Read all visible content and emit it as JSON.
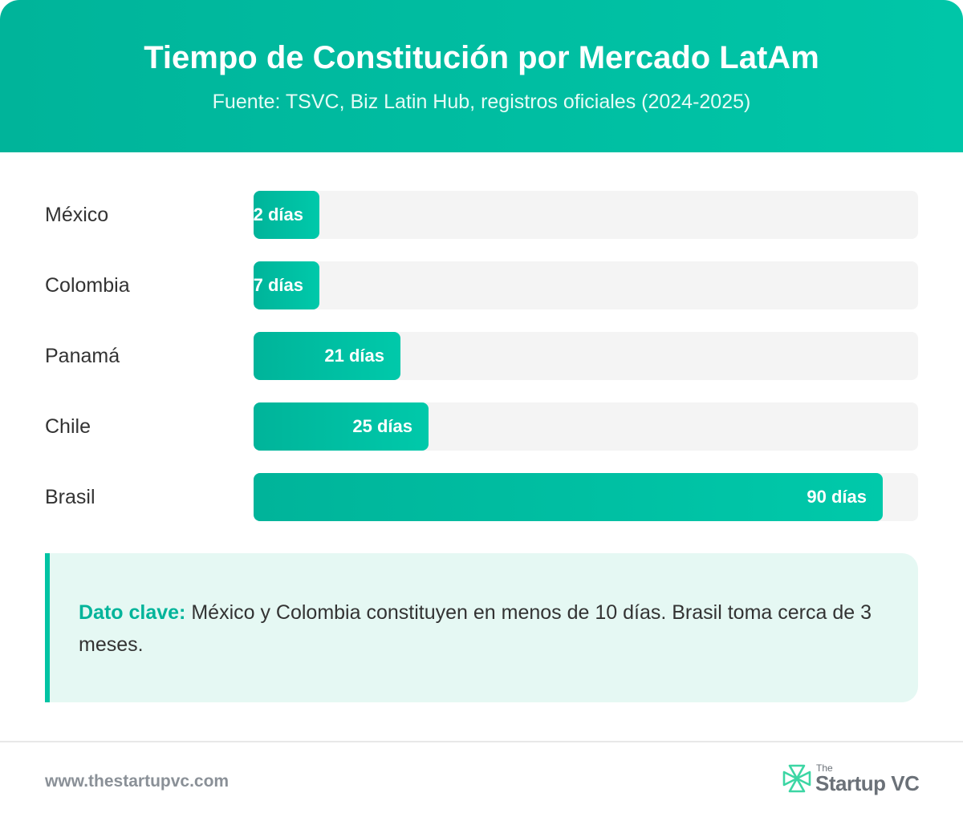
{
  "header": {
    "title": "Tiempo de Constitución por Mercado LatAm",
    "subtitle": "Fuente: TSVC, Biz Latin Hub, registros oficiales (2024-2025)"
  },
  "chart_data": {
    "type": "bar",
    "orientation": "horizontal",
    "categories": [
      "México",
      "Colombia",
      "Panamá",
      "Chile",
      "Brasil"
    ],
    "values": [
      2,
      7,
      21,
      25,
      90
    ],
    "value_labels": [
      "2 días",
      "7 días",
      "21 días",
      "25 días",
      "90 días"
    ],
    "unit": "días",
    "xlim": [
      0,
      95
    ],
    "grid": false,
    "bar_color": "#00bfa5"
  },
  "callout": {
    "key_label": "Dato clave:",
    "text": " México y Colombia constituyen en menos de 10 días. Brasil toma cerca de 3 meses."
  },
  "footer": {
    "url": "www.thestartupvc.com",
    "logo_small": "The",
    "logo_name": "Startup VC"
  },
  "colors": {
    "accent": "#00c3a3",
    "header_gradient_start": "#00b49a",
    "header_gradient_end": "#00c6a8",
    "callout_bg": "#e5f8f3",
    "track": "#f4f4f4"
  }
}
